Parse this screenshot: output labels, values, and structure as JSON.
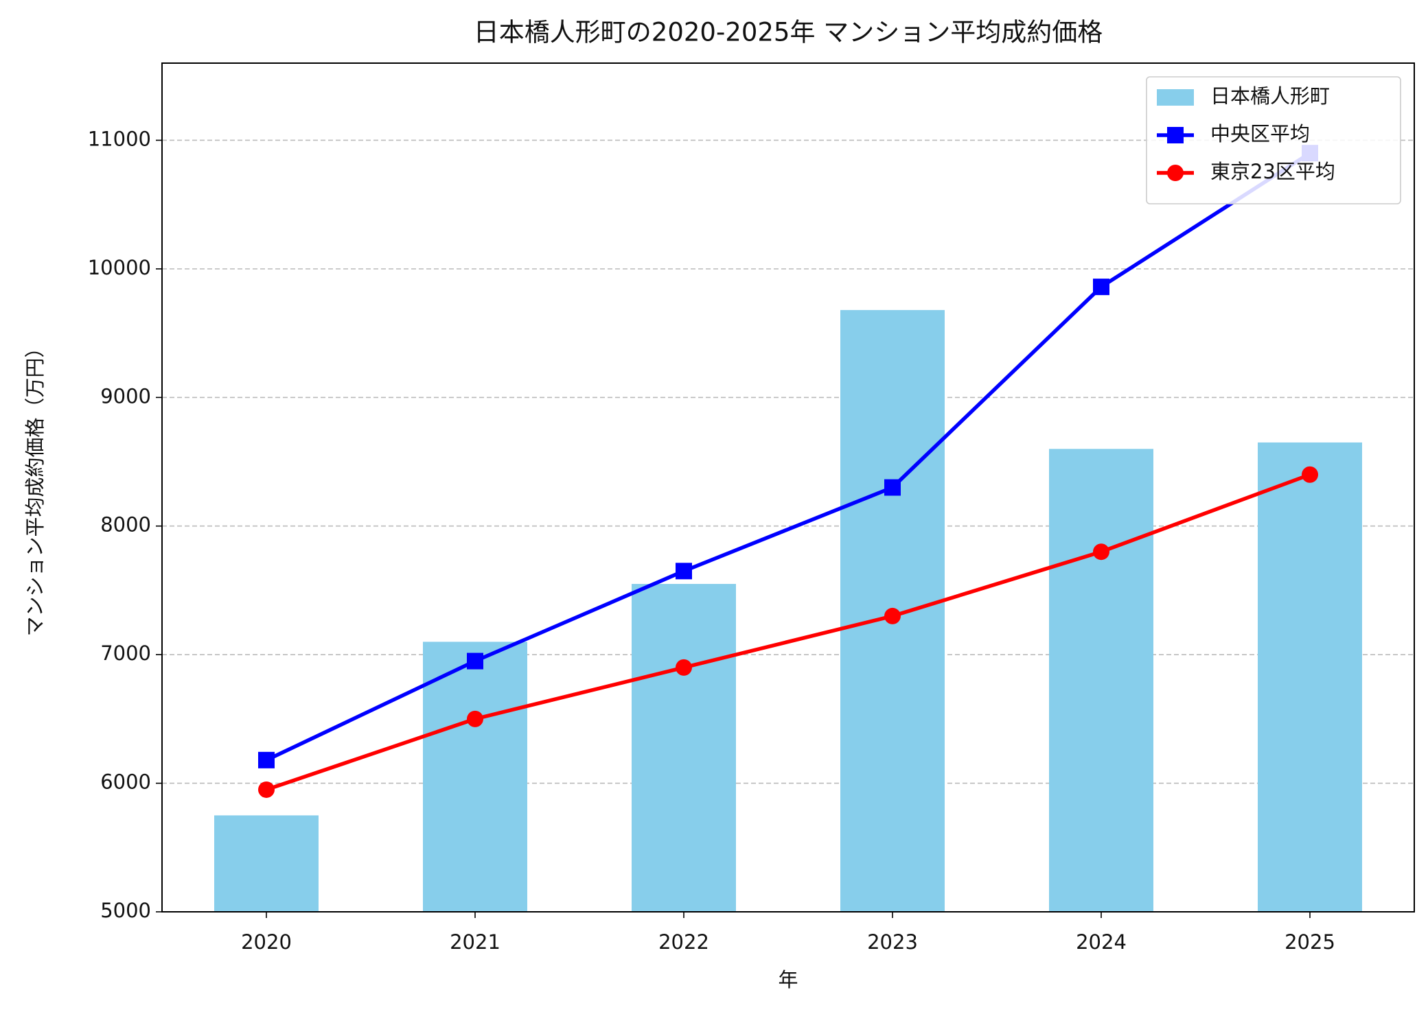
{
  "chart_data": {
    "type": "bar",
    "title": "日本橋人形町の2020-2025年 マンション平均成約価格",
    "x_label": "年",
    "y_label": "マンション平均成約価格（万円）",
    "categories": [
      "2020",
      "2021",
      "2022",
      "2023",
      "2024",
      "2025"
    ],
    "series": [
      {
        "name": "日本橋人形町",
        "type": "bar",
        "color": "#87ceeb",
        "values": [
          5750,
          7100,
          7550,
          9680,
          8600,
          8650
        ]
      },
      {
        "name": "中央区平均",
        "type": "line",
        "marker": "square",
        "color": "#0000ff",
        "values": [
          6180,
          6950,
          7650,
          8300,
          9860,
          10900
        ]
      },
      {
        "name": "東京23区平均",
        "type": "line",
        "marker": "circle",
        "color": "#ff0000",
        "values": [
          5950,
          6500,
          6900,
          7300,
          7800,
          8400
        ]
      }
    ],
    "ylim": [
      5000,
      11600
    ],
    "yticks": [
      5000,
      6000,
      7000,
      8000,
      9000,
      10000,
      11000
    ],
    "grid": true,
    "legend": "upper-right"
  }
}
